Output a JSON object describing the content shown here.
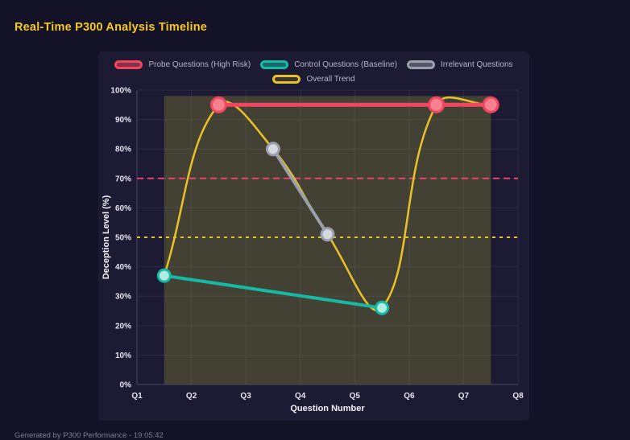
{
  "page": {
    "title": "Real-Time P300 Analysis Timeline",
    "footer": "Generated by P300 Performance - 19:05:42"
  },
  "chart_data": {
    "type": "line",
    "title": "Real-Time P300 Analysis Timeline",
    "xlabel": "Question Number",
    "ylabel": "Deception Level (%)",
    "x_ticks": [
      "Q1",
      "Q2",
      "Q3",
      "Q4",
      "Q5",
      "Q6",
      "Q7",
      "Q8"
    ],
    "x_range": [
      1,
      8
    ],
    "ylim": [
      0,
      100
    ],
    "y_tick_step": 10,
    "y_tick_suffix": "%",
    "grid": true,
    "legend_position": "top",
    "colors": {
      "grid": "#2b2a47",
      "axis": "#4a4965",
      "tick_label": "#e4e5f0",
      "axis_title": "#f2f3f7",
      "background": "#1c1b33",
      "page_background": "#131226",
      "title_accent": "#f8ca1c"
    },
    "series": [
      {
        "name": "Probe Questions (High Risk)",
        "color": "#f2455f",
        "legend_fill": "rgba(242,69,95,0.5)",
        "point_fill": "#f8818f",
        "point_radius": 9,
        "line_width": 5,
        "smooth": false,
        "show_points": true,
        "x": [
          2.5,
          6.5,
          7.5
        ],
        "values": [
          95,
          95,
          95
        ]
      },
      {
        "name": "Control Questions (Baseline)",
        "color": "#16b8a6",
        "legend_fill": "rgba(22,184,166,0.5)",
        "point_fill": "#b2ebe2",
        "point_radius": 7.5,
        "line_width": 4,
        "smooth": false,
        "show_points": true,
        "x": [
          1.5,
          5.5
        ],
        "values": [
          37,
          26
        ]
      },
      {
        "name": "Irrelevant Questions",
        "color": "#9aa1ac",
        "legend_fill": "rgba(154,161,172,0.45)",
        "point_fill": "#d6d9de",
        "point_radius": 7.5,
        "line_width": 4,
        "smooth": false,
        "show_points": true,
        "x": [
          3.5,
          4.5
        ],
        "values": [
          80,
          51
        ]
      },
      {
        "name": "Overall Trend",
        "color": "#e9c227",
        "legend_fill": "rgba(233,194,39,0.15)",
        "point_radius": 0,
        "line_width": 2.5,
        "smooth": true,
        "show_points": false,
        "x": [
          1.5,
          2.5,
          3.5,
          4.5,
          5.5,
          6.5,
          7.5
        ],
        "values": [
          37,
          95,
          80,
          51,
          26,
          95,
          95
        ]
      }
    ],
    "thresholds": [
      {
        "name": "high-risk-threshold",
        "value": 70,
        "color": "#f43f6b",
        "dash": "8 5"
      },
      {
        "name": "baseline-threshold",
        "value": 50,
        "color": "#e9c227",
        "dash": "4 5"
      }
    ],
    "shaded_region": {
      "x0": 1.5,
      "x1": 7.5,
      "y0": 0,
      "y1": 98,
      "color": "rgba(210,200,60,0.22)"
    }
  }
}
